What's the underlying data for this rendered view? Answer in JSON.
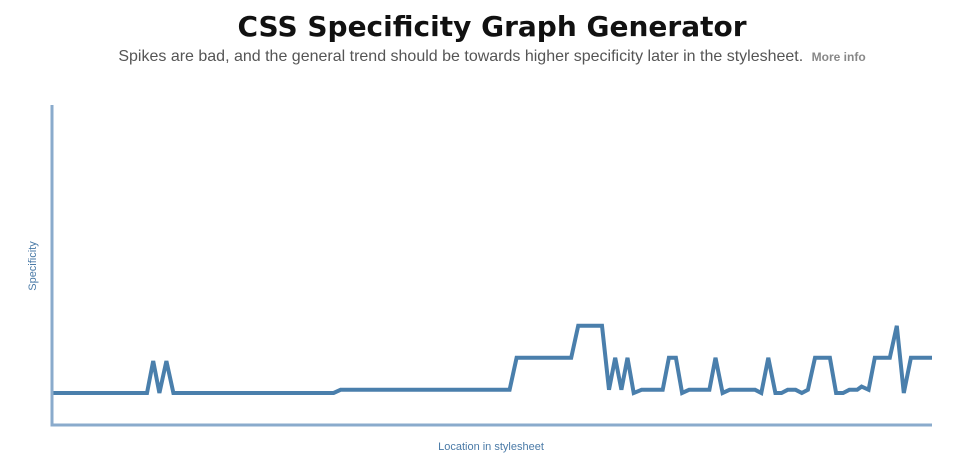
{
  "header": {
    "title": "CSS Specificity Graph Generator",
    "subtitle": "Spikes are bad, and the general trend should be towards higher specificity later in the stylesheet.",
    "more_info_label": "More info"
  },
  "colors": {
    "line": "#4a7fac",
    "axis": "#8aabcc",
    "axis_label": "#4a7aa7"
  },
  "chart_data": {
    "type": "line",
    "title": "CSS Specificity Graph Generator",
    "xlabel": "Location in stylesheet",
    "ylabel": "Specificity",
    "grid": false,
    "ylim": [
      0,
      100
    ],
    "xlim": [
      0,
      1000
    ],
    "series": [
      {
        "name": "",
        "points": [
          [
            0,
            10
          ],
          [
            108,
            10
          ],
          [
            115,
            20
          ],
          [
            122,
            10
          ],
          [
            130,
            20
          ],
          [
            138,
            10
          ],
          [
            320,
            10
          ],
          [
            328,
            11
          ],
          [
            520,
            11
          ],
          [
            528,
            21
          ],
          [
            590,
            21
          ],
          [
            598,
            31
          ],
          [
            625,
            31
          ],
          [
            633,
            11
          ],
          [
            640,
            21
          ],
          [
            647,
            11
          ],
          [
            654,
            21
          ],
          [
            661,
            10
          ],
          [
            670,
            11
          ],
          [
            694,
            11
          ],
          [
            701,
            21
          ],
          [
            709,
            21
          ],
          [
            716,
            10
          ],
          [
            724,
            11
          ],
          [
            747,
            11
          ],
          [
            754,
            21
          ],
          [
            762,
            10
          ],
          [
            770,
            11
          ],
          [
            799,
            11
          ],
          [
            806,
            10
          ],
          [
            814,
            21
          ],
          [
            822,
            10
          ],
          [
            829,
            10
          ],
          [
            836,
            11
          ],
          [
            845,
            11
          ],
          [
            852,
            10
          ],
          [
            859,
            11
          ],
          [
            867,
            21
          ],
          [
            884,
            21
          ],
          [
            891,
            10
          ],
          [
            899,
            10
          ],
          [
            906,
            11
          ],
          [
            915,
            11
          ],
          [
            920,
            12
          ],
          [
            928,
            11
          ],
          [
            935,
            21
          ],
          [
            952,
            21
          ],
          [
            960,
            31
          ],
          [
            968,
            10
          ],
          [
            976,
            21
          ],
          [
            1000,
            21
          ]
        ]
      }
    ]
  }
}
